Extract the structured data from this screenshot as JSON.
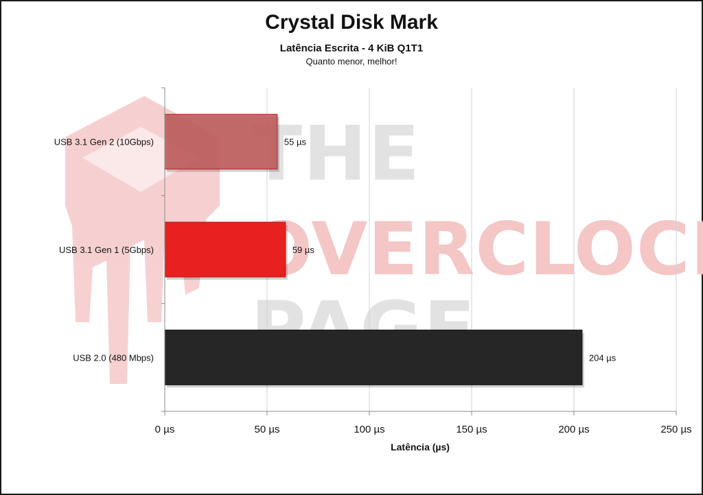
{
  "chart_data": {
    "type": "bar",
    "orientation": "horizontal",
    "title": "Crystal Disk Mark",
    "subtitle": "Latência Escrita - 4 KiB Q1T1",
    "note": "Quanto menor, melhor!",
    "categories": [
      "USB 3.1 Gen 2 (10Gbps)",
      "USB 3.1 Gen 1 (5Gbps)",
      "USB 2.0 (480 Mbps)"
    ],
    "values": [
      55,
      59,
      204
    ],
    "value_labels": [
      "55 µs",
      "59 µs",
      "204 µs"
    ],
    "bar_colors": [
      "#c06060",
      "#e82020",
      "#262626"
    ],
    "xlabel": "Latência (µs)",
    "xlim": [
      0,
      250
    ],
    "x_ticks": [
      0,
      50,
      100,
      150,
      200,
      250
    ],
    "x_tick_labels": [
      "0 µs",
      "50 µs",
      "100 µs",
      "150 µs",
      "200 µs",
      "250 µs"
    ],
    "grid": "vertical",
    "legend": "none"
  },
  "watermark": {
    "text_lines": [
      "THE",
      "OVERCLOCK",
      "PAGE"
    ],
    "colors": {
      "red": "#f2b8b8",
      "grey": "#dedede"
    }
  }
}
